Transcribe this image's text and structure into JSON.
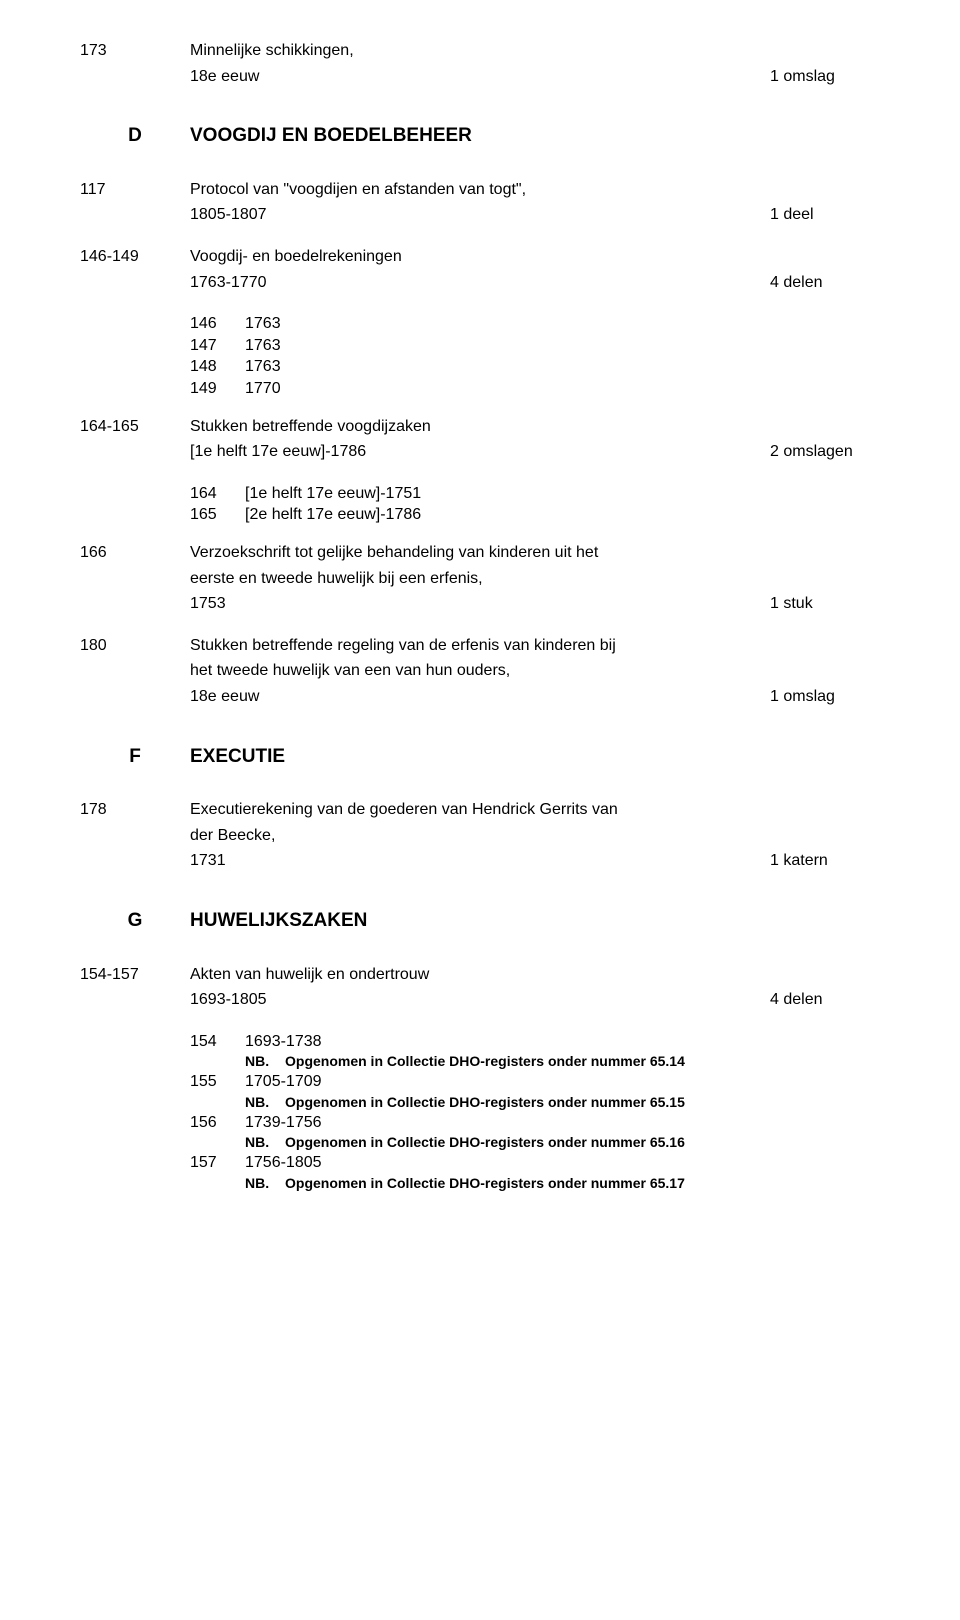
{
  "e173": {
    "num": "173",
    "line1": "Minnelijke schikkingen,",
    "line2": "18e eeuw",
    "unit": "1 omslag"
  },
  "sectD": {
    "letter": "D",
    "title": "VOOGDIJ EN BOEDELBEHEER"
  },
  "e117": {
    "num": "117",
    "line1": "Protocol van \"voogdijen en afstanden van togt\",",
    "line2": "1805-1807",
    "unit": "1 deel"
  },
  "e146_149": {
    "num": "146-149",
    "line1": "Voogdij- en boedelrekeningen",
    "line2": "1763-1770",
    "unit": "4 delen",
    "subs": [
      {
        "n": "146",
        "t": "1763"
      },
      {
        "n": "147",
        "t": "1763"
      },
      {
        "n": "148",
        "t": "1763"
      },
      {
        "n": "149",
        "t": "1770"
      }
    ]
  },
  "e164_165": {
    "num": "164-165",
    "line1": "Stukken betreffende voogdijzaken",
    "line2": "[1e helft 17e eeuw]-1786",
    "unit": "2 omslagen",
    "subs": [
      {
        "n": "164",
        "t": "[1e helft 17e eeuw]-1751"
      },
      {
        "n": "165",
        "t": "[2e helft 17e eeuw]-1786"
      }
    ]
  },
  "e166": {
    "num": "166",
    "line1": "Verzoekschrift tot gelijke behandeling van kinderen uit het",
    "line2": "eerste en tweede huwelijk bij een erfenis,",
    "line3": "1753",
    "unit": "1 stuk"
  },
  "e180": {
    "num": "180",
    "line1": "Stukken betreffende regeling van de erfenis van kinderen bij",
    "line2": "het tweede huwelijk van een van hun ouders,",
    "line3": "18e eeuw",
    "unit": "1 omslag"
  },
  "sectF": {
    "letter": "F",
    "title": "EXECUTIE"
  },
  "e178": {
    "num": "178",
    "line1": "Executierekening van de goederen van Hendrick Gerrits van",
    "line2": "der Beecke,",
    "line3": "1731",
    "unit": "1 katern"
  },
  "sectG": {
    "letter": "G",
    "title": "HUWELIJKSZAKEN"
  },
  "e154_157": {
    "num": "154-157",
    "line1": "Akten van huwelijk en ondertrouw",
    "line2": "1693-1805",
    "unit": "4 delen",
    "subs": [
      {
        "n": "154",
        "t": "1693-1738",
        "nb": "Opgenomen in Collectie DHO-registers onder nummer 65.14"
      },
      {
        "n": "155",
        "t": "1705-1709",
        "nb": "Opgenomen in Collectie DHO-registers onder nummer 65.15"
      },
      {
        "n": "156",
        "t": "1739-1756",
        "nb": "Opgenomen in Collectie DHO-registers onder nummer 65.16"
      },
      {
        "n": "157",
        "t": "1756-1805",
        "nb": "Opgenomen in Collectie DHO-registers onder nummer 65.17"
      }
    ],
    "nb_label": "NB."
  }
}
